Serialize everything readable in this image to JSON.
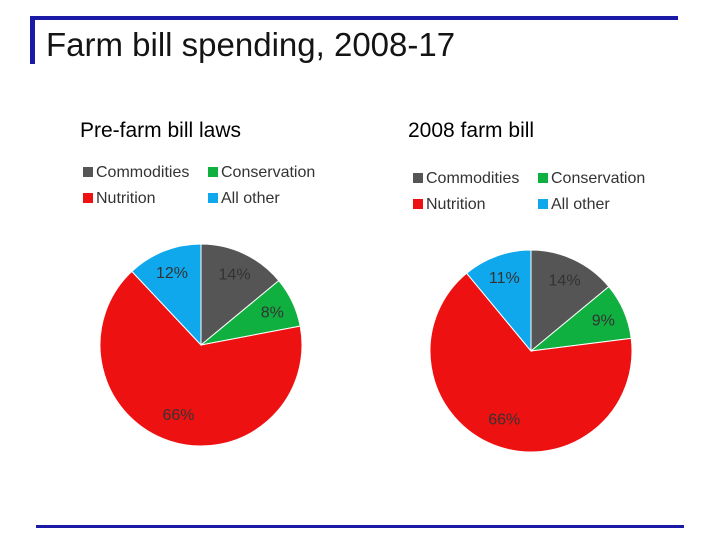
{
  "slide": {
    "title": "Farm bill spending, 2008-17"
  },
  "colors": {
    "accent": "#1a1aa6",
    "Commodities": "#555555",
    "Conservation": "#10b040",
    "Nutrition": "#ee1111",
    "All other": "#10a8ec"
  },
  "chart_data": [
    {
      "type": "pie",
      "title": "Pre-farm bill laws",
      "legend": [
        "Commodities",
        "Conservation",
        "Nutrition",
        "All other"
      ],
      "legend_position": "top",
      "slices": [
        {
          "label": "Commodities",
          "value": 14,
          "text": "14%"
        },
        {
          "label": "Conservation",
          "value": 8,
          "text": "8%"
        },
        {
          "label": "Nutrition",
          "value": 66,
          "text": "66%"
        },
        {
          "label": "All other",
          "value": 12,
          "text": "12%"
        }
      ]
    },
    {
      "type": "pie",
      "title": "2008 farm bill",
      "legend": [
        "Commodities",
        "Conservation",
        "Nutrition",
        "All other"
      ],
      "legend_position": "top",
      "slices": [
        {
          "label": "Commodities",
          "value": 14,
          "text": "14%"
        },
        {
          "label": "Conservation",
          "value": 9,
          "text": "9%"
        },
        {
          "label": "Nutrition",
          "value": 66,
          "text": "66%"
        },
        {
          "label": "All other",
          "value": 11,
          "text": "11%"
        }
      ]
    }
  ]
}
